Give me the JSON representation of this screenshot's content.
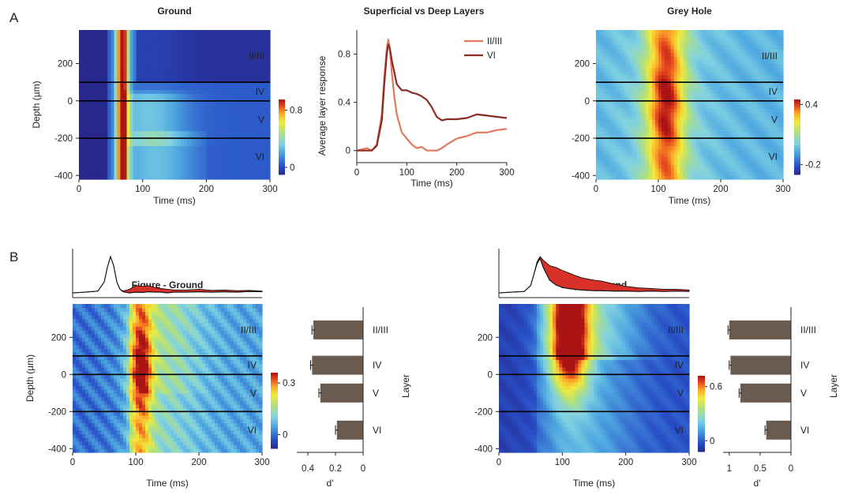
{
  "panels": {
    "a_label": "A",
    "b_label": "B"
  },
  "chart_data": [
    {
      "id": "ground",
      "type": "heatmap",
      "title": "Ground",
      "xlabel": "Time (ms)",
      "ylabel": "Depth (µm)",
      "xlim": [
        0,
        300
      ],
      "ylim": [
        -420,
        380
      ],
      "xticks": [
        "0",
        "100",
        "200",
        "300"
      ],
      "yticks": [
        "200",
        "0",
        "-200",
        "-400"
      ],
      "ytick_values": [
        200,
        0,
        -200,
        -400
      ],
      "boundaries": [
        100,
        0,
        -200
      ],
      "layers": [
        {
          "label": "II/III",
          "depth": 240
        },
        {
          "label": "IV",
          "depth": 50
        },
        {
          "label": "V",
          "depth": -100
        },
        {
          "label": "VI",
          "depth": -300
        }
      ],
      "colorbar": {
        "range": [
          -0.1,
          0.95
        ],
        "ticks": [
          "0.8",
          "0"
        ],
        "tick_values": [
          0.8,
          0
        ]
      }
    },
    {
      "id": "superficial-deep",
      "type": "line",
      "title": "Superficial vs Deep Layers",
      "xlabel": "Time (ms)",
      "ylabel": "Average layer response",
      "xlim": [
        0,
        300
      ],
      "ylim": [
        -0.1,
        1.0
      ],
      "xticks": [
        "0",
        "100",
        "200",
        "300"
      ],
      "yticks": [
        "0.8",
        "0.4",
        "0"
      ],
      "ytick_values": [
        0.8,
        0.4,
        0
      ],
      "series": [
        {
          "name": "II/III",
          "color": "#e07a5f",
          "x": [
            0,
            20,
            30,
            40,
            50,
            55,
            60,
            63,
            66,
            70,
            75,
            80,
            90,
            100,
            110,
            120,
            130,
            140,
            150,
            160,
            170,
            180,
            200,
            220,
            240,
            260,
            280,
            300
          ],
          "y": [
            0,
            0.02,
            0.0,
            0.05,
            0.3,
            0.6,
            0.85,
            0.92,
            0.85,
            0.65,
            0.45,
            0.3,
            0.15,
            0.1,
            0.05,
            0.02,
            0.03,
            0.0,
            0.0,
            0.0,
            0.02,
            0.05,
            0.1,
            0.12,
            0.15,
            0.15,
            0.17,
            0.18
          ]
        },
        {
          "name": "VI",
          "color": "#8b2c20",
          "x": [
            0,
            20,
            30,
            40,
            50,
            55,
            60,
            63,
            66,
            70,
            75,
            80,
            90,
            100,
            110,
            120,
            130,
            140,
            150,
            160,
            170,
            180,
            200,
            220,
            240,
            260,
            280,
            300
          ],
          "y": [
            0,
            0.0,
            0.0,
            0.04,
            0.25,
            0.55,
            0.8,
            0.88,
            0.85,
            0.75,
            0.65,
            0.55,
            0.5,
            0.5,
            0.48,
            0.47,
            0.45,
            0.42,
            0.36,
            0.28,
            0.25,
            0.26,
            0.26,
            0.27,
            0.3,
            0.29,
            0.28,
            0.27
          ]
        }
      ]
    },
    {
      "id": "grey-hole",
      "type": "heatmap",
      "title": "Grey Hole",
      "xlabel": "Time (ms)",
      "ylabel": "",
      "xlim": [
        0,
        300
      ],
      "ylim": [
        -420,
        380
      ],
      "xticks": [
        "0",
        "100",
        "200",
        "300"
      ],
      "yticks": [
        "200",
        "0",
        "-200",
        "-400"
      ],
      "ytick_values": [
        200,
        0,
        -200,
        -400
      ],
      "boundaries": [
        100,
        0,
        -200
      ],
      "layers": [
        {
          "label": "II/III",
          "depth": 240
        },
        {
          "label": "IV",
          "depth": 50
        },
        {
          "label": "V",
          "depth": -100
        },
        {
          "label": "VI",
          "depth": -300
        }
      ],
      "colorbar": {
        "range": [
          -0.3,
          0.45
        ],
        "ticks": [
          "0.4",
          "-0.2"
        ],
        "tick_values": [
          0.4,
          -0.2
        ]
      }
    },
    {
      "id": "figure-ground",
      "type": "heatmap",
      "title": "Figure - Ground",
      "xlabel": "Time (ms)",
      "ylabel": "Depth (µm)",
      "xlim": [
        0,
        300
      ],
      "ylim": [
        -420,
        380
      ],
      "xticks": [
        "0",
        "100",
        "200",
        "300"
      ],
      "yticks": [
        "200",
        "0",
        "-200",
        "-400"
      ],
      "ytick_values": [
        200,
        0,
        -200,
        -400
      ],
      "boundaries": [
        100,
        0,
        -200
      ],
      "layers": [
        {
          "label": "II/III",
          "depth": 240
        },
        {
          "label": "IV",
          "depth": 50
        },
        {
          "label": "V",
          "depth": -100
        },
        {
          "label": "VI",
          "depth": -300
        }
      ],
      "colorbar": {
        "range": [
          -0.08,
          0.36
        ],
        "ticks": [
          "0.3",
          "0"
        ],
        "tick_values": [
          0.3,
          0
        ]
      },
      "dprime": {
        "xlabel": "d'",
        "ylabel": "Layer",
        "xlim": [
          0.48,
          0
        ],
        "xticks": [
          "0.4",
          "0.2",
          "0"
        ],
        "xtick_values": [
          0.4,
          0.2,
          0
        ],
        "categories": [
          "II/III",
          "IV",
          "V",
          "VI"
        ],
        "values": [
          0.36,
          0.37,
          0.31,
          0.19
        ],
        "errors": [
          0.01,
          0.01,
          0.01,
          0.01
        ]
      },
      "trace": {
        "x": [
          0,
          20,
          40,
          50,
          55,
          60,
          65,
          70,
          75,
          80,
          90,
          100,
          110,
          120,
          130,
          140,
          150,
          160,
          180,
          200,
          220,
          240,
          260,
          280,
          300
        ],
        "upper": [
          0,
          0.02,
          0.05,
          0.3,
          0.7,
          1.0,
          0.75,
          0.3,
          0.1,
          0.05,
          0.1,
          0.2,
          0.18,
          0.2,
          0.15,
          0.12,
          0.1,
          0.08,
          0.08,
          0.1,
          0.07,
          0.08,
          0.06,
          0.07,
          0.05
        ],
        "lower": [
          0,
          0.02,
          0.05,
          0.3,
          0.7,
          1.0,
          0.75,
          0.3,
          0.1,
          0.03,
          0.0,
          0.02,
          0.01,
          0.03,
          0.02,
          0.02,
          0.0,
          0.02,
          0.02,
          0.03,
          0.02,
          0.03,
          0.02,
          0.04,
          0.03
        ]
      }
    },
    {
      "id": "edge-ground",
      "type": "heatmap",
      "title": "Edge - Ground",
      "xlabel": "Time (ms)",
      "ylabel": "",
      "xlim": [
        0,
        300
      ],
      "ylim": [
        -420,
        380
      ],
      "xticks": [
        "0",
        "100",
        "200",
        "300"
      ],
      "yticks": [
        "200",
        "0",
        "-200",
        "-400"
      ],
      "ytick_values": [
        200,
        0,
        -200,
        -400
      ],
      "boundaries": [
        100,
        0,
        -200
      ],
      "layers": [
        {
          "label": "II/III",
          "depth": 240
        },
        {
          "label": "IV",
          "depth": 50
        },
        {
          "label": "V",
          "depth": -100
        },
        {
          "label": "VI",
          "depth": -300
        }
      ],
      "colorbar": {
        "range": [
          -0.12,
          0.72
        ],
        "ticks": [
          "0.6",
          "0"
        ],
        "tick_values": [
          0.6,
          0
        ]
      },
      "dprime": {
        "xlabel": "d'",
        "ylabel": "Layer",
        "xlim": [
          1.1,
          0
        ],
        "xticks": [
          "1",
          "0.5",
          "0"
        ],
        "xtick_values": [
          1,
          0.5,
          0
        ],
        "categories": [
          "II/III",
          "IV",
          "V",
          "VI"
        ],
        "values": [
          1.0,
          0.98,
          0.82,
          0.4
        ],
        "errors": [
          0.02,
          0.02,
          0.02,
          0.02
        ]
      },
      "trace": {
        "x": [
          0,
          20,
          40,
          50,
          55,
          60,
          65,
          70,
          80,
          90,
          100,
          110,
          120,
          130,
          140,
          150,
          160,
          180,
          200,
          220,
          240,
          260,
          280,
          300
        ],
        "upper": [
          0,
          0.02,
          0.04,
          0.2,
          0.5,
          0.85,
          1.0,
          0.9,
          0.75,
          0.7,
          0.62,
          0.55,
          0.48,
          0.42,
          0.38,
          0.35,
          0.33,
          0.25,
          0.18,
          0.14,
          0.12,
          0.1,
          0.1,
          0.08
        ],
        "lower": [
          0,
          0.02,
          0.04,
          0.2,
          0.5,
          0.8,
          0.95,
          0.7,
          0.35,
          0.22,
          0.15,
          0.12,
          0.1,
          0.08,
          0.07,
          0.06,
          0.06,
          0.05,
          0.05,
          0.04,
          0.05,
          0.04,
          0.05,
          0.04
        ]
      }
    }
  ]
}
